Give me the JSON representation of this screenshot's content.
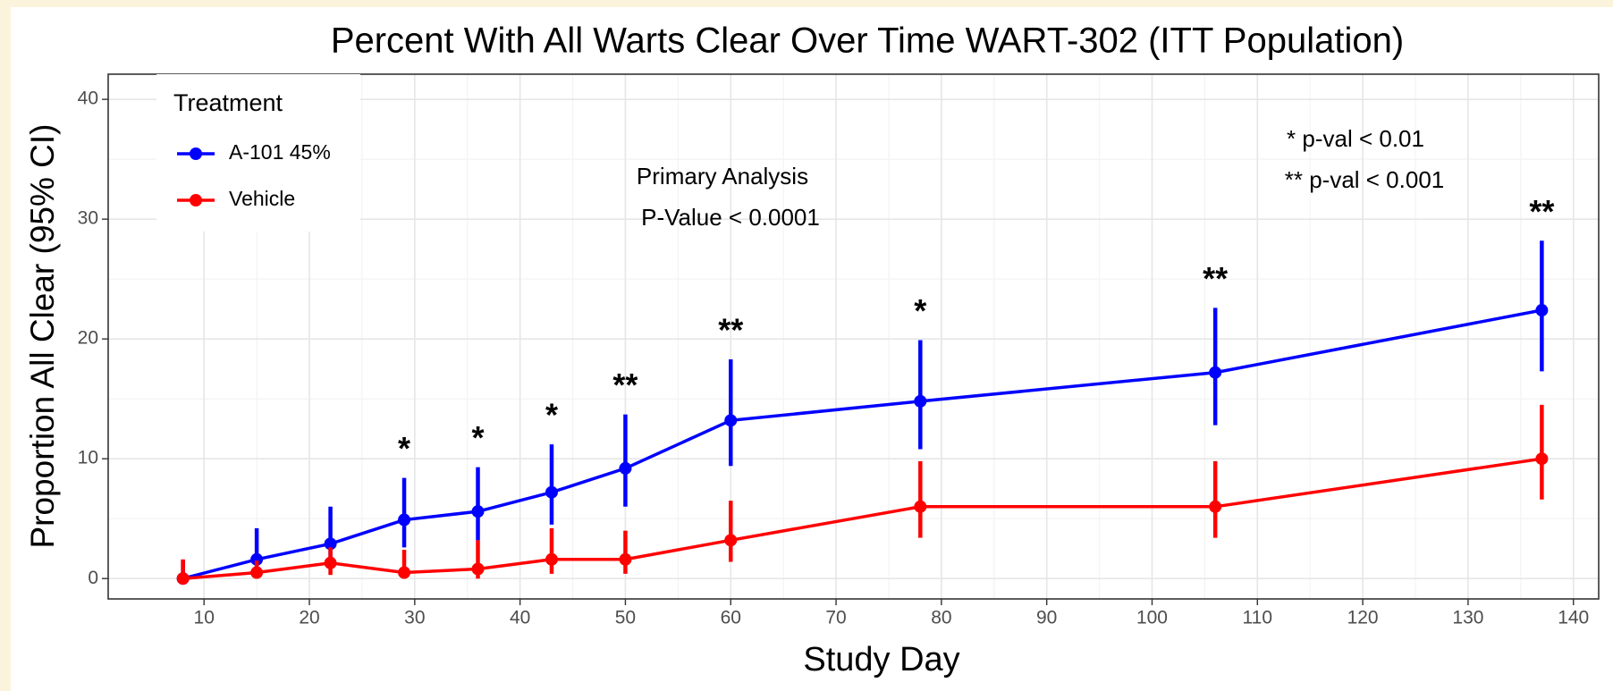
{
  "chart_data": {
    "type": "line",
    "title": "Percent With All Warts Clear Over Time WART-302 (ITT Population)",
    "x_label": "Study Day",
    "y_label": "Proportion All Clear (95% CI)",
    "x": [
      8,
      15,
      22,
      29,
      36,
      43,
      50,
      60,
      78,
      106,
      137
    ],
    "series": [
      {
        "name": "A-101 45%",
        "color": "#0000ff",
        "values": [
          0,
          1.6,
          2.9,
          4.9,
          5.6,
          7.2,
          9.2,
          13.2,
          14.8,
          17.2,
          22.4
        ],
        "lower": [
          0,
          0.2,
          1.0,
          2.6,
          3.2,
          4.5,
          6.0,
          9.4,
          10.8,
          12.8,
          17.3
        ],
        "upper": [
          1.5,
          4.2,
          6.0,
          8.4,
          9.3,
          11.2,
          13.7,
          18.3,
          19.9,
          22.6,
          28.2
        ]
      },
      {
        "name": "Vehicle",
        "color": "#ff0000",
        "values": [
          0,
          0.5,
          1.3,
          0.5,
          0.8,
          1.6,
          1.6,
          3.2,
          6.0,
          6.0,
          10.0
        ],
        "lower": [
          0,
          0,
          0.3,
          0,
          0,
          0.4,
          0.4,
          1.4,
          3.4,
          3.4,
          6.6
        ],
        "upper": [
          1.6,
          1.5,
          2.6,
          2.4,
          3.2,
          4.2,
          4.0,
          6.5,
          9.8,
          9.8,
          14.5
        ]
      }
    ],
    "significance": [
      null,
      null,
      null,
      "*",
      "*",
      "*",
      "**",
      "**",
      "*",
      "**",
      "**"
    ],
    "legend_title": "Treatment",
    "legend": "top-left",
    "annotations": [
      "Primary Analysis",
      "P-Value < 0.0001",
      "* p-val < 0.01",
      "** p-val < 0.001"
    ],
    "xlim": [
      0.9,
      142.4
    ],
    "ylim": [
      -1.7,
      42.1
    ],
    "xticks": [
      10,
      20,
      30,
      40,
      50,
      60,
      70,
      80,
      90,
      100,
      110,
      120,
      130,
      140
    ],
    "yticks": [
      0,
      10,
      20,
      30,
      40
    ],
    "grid": true
  }
}
